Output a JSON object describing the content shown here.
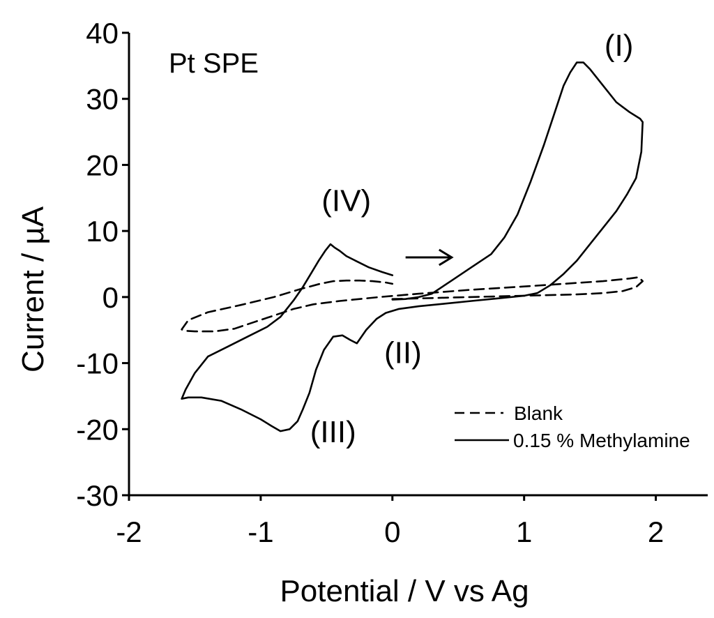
{
  "chart_data": {
    "type": "line",
    "title": "Pt SPE",
    "xlabel": "Potential / V vs Ag",
    "ylabel": "Current / µA",
    "xlim": [
      -2,
      2.5
    ],
    "ylim": [
      -30,
      40
    ],
    "xticks": [
      -2,
      -1,
      0,
      1,
      2
    ],
    "xtick_labels": [
      "-2",
      "-1",
      "0",
      "1",
      "2"
    ],
    "yticks": [
      -30,
      -20,
      -10,
      0,
      10,
      20,
      30,
      40
    ],
    "ytick_labels": [
      "-30",
      "-20",
      "-10",
      "0",
      "10",
      "20",
      "30",
      "40"
    ],
    "legend_position": "bottom-right",
    "series": [
      {
        "name": "Blank",
        "style": "dashed",
        "x": [
          0.0,
          0.2,
          0.5,
          0.8,
          1.1,
          1.4,
          1.6,
          1.75,
          1.85,
          1.9,
          1.87,
          1.8,
          1.6,
          1.3,
          1.0,
          0.6,
          0.2,
          -0.1,
          -0.4,
          -0.6,
          -0.75,
          -0.9,
          -1.05,
          -1.2,
          -1.35,
          -1.5,
          -1.58,
          -1.6,
          -1.55,
          -1.4,
          -1.15,
          -0.9,
          -0.7,
          -0.55,
          -0.45,
          -0.35,
          -0.25,
          -0.15,
          -0.05,
          0.0
        ],
        "y": [
          -0.3,
          -0.2,
          -0.05,
          0.1,
          0.25,
          0.4,
          0.6,
          0.9,
          1.5,
          2.4,
          3.0,
          2.8,
          2.4,
          2.0,
          1.6,
          1.1,
          0.5,
          0.0,
          -0.6,
          -1.1,
          -1.8,
          -2.8,
          -3.8,
          -4.8,
          -5.2,
          -5.2,
          -5.1,
          -4.9,
          -3.5,
          -2.3,
          -1.2,
          0.0,
          1.2,
          2.0,
          2.4,
          2.5,
          2.5,
          2.4,
          2.2,
          2.0
        ]
      },
      {
        "name": "0.15 % Methylamine",
        "style": "solid",
        "x": [
          0.0,
          0.1,
          0.2,
          0.3,
          0.45,
          0.6,
          0.75,
          0.85,
          0.95,
          1.05,
          1.15,
          1.25,
          1.3,
          1.35,
          1.4,
          1.45,
          1.5,
          1.6,
          1.7,
          1.8,
          1.88,
          1.9,
          1.89,
          1.85,
          1.78,
          1.7,
          1.6,
          1.5,
          1.4,
          1.3,
          1.2,
          1.1,
          1.0,
          0.8,
          0.6,
          0.4,
          0.2,
          0.05,
          -0.05,
          -0.12,
          -0.2,
          -0.27,
          -0.32,
          -0.38,
          -0.45,
          -0.52,
          -0.58,
          -0.63,
          -0.68,
          -0.72,
          -0.78,
          -0.85,
          -0.92,
          -1.0,
          -1.15,
          -1.3,
          -1.45,
          -1.55,
          -1.6,
          -1.57,
          -1.5,
          -1.4,
          -1.25,
          -1.1,
          -0.95,
          -0.85,
          -0.75,
          -0.68,
          -0.62,
          -0.56,
          -0.51,
          -0.47,
          -0.44,
          -0.4,
          -0.35,
          -0.28,
          -0.18,
          -0.08,
          0.0
        ],
        "y": [
          -0.4,
          -0.3,
          0.0,
          0.5,
          2.5,
          4.5,
          6.5,
          9.0,
          12.5,
          17.5,
          23.0,
          29.0,
          32.0,
          34.0,
          35.5,
          35.5,
          34.5,
          32.0,
          29.5,
          28.0,
          27.0,
          26.5,
          22.0,
          18.0,
          15.5,
          13.0,
          10.5,
          8.0,
          5.5,
          3.5,
          1.8,
          0.6,
          0.2,
          -0.2,
          -0.6,
          -1.0,
          -1.4,
          -1.8,
          -2.4,
          -3.3,
          -5.0,
          -7.0,
          -6.5,
          -5.8,
          -6.0,
          -8.0,
          -11.0,
          -14.5,
          -17.0,
          -18.8,
          -20.0,
          -20.3,
          -19.5,
          -18.5,
          -17.0,
          -15.7,
          -15.2,
          -15.2,
          -15.4,
          -14.0,
          -11.5,
          -9.0,
          -7.5,
          -6.0,
          -4.5,
          -3.0,
          -0.5,
          1.5,
          3.5,
          5.5,
          7.0,
          8.0,
          7.5,
          7.0,
          6.2,
          5.5,
          4.5,
          3.8,
          3.3
        ]
      }
    ],
    "annotations": [
      {
        "text": "(I)",
        "x": 1.72,
        "y": 36.5
      },
      {
        "text": "(II)",
        "x": 0.08,
        "y": -10.0
      },
      {
        "text": "(III)",
        "x": -0.45,
        "y": -22.0
      },
      {
        "text": "(IV)",
        "x": -0.35,
        "y": 13.0
      }
    ],
    "arrow": {
      "x_start": 0.1,
      "x_end": 0.45,
      "y": 6.0,
      "direction": "right"
    }
  }
}
